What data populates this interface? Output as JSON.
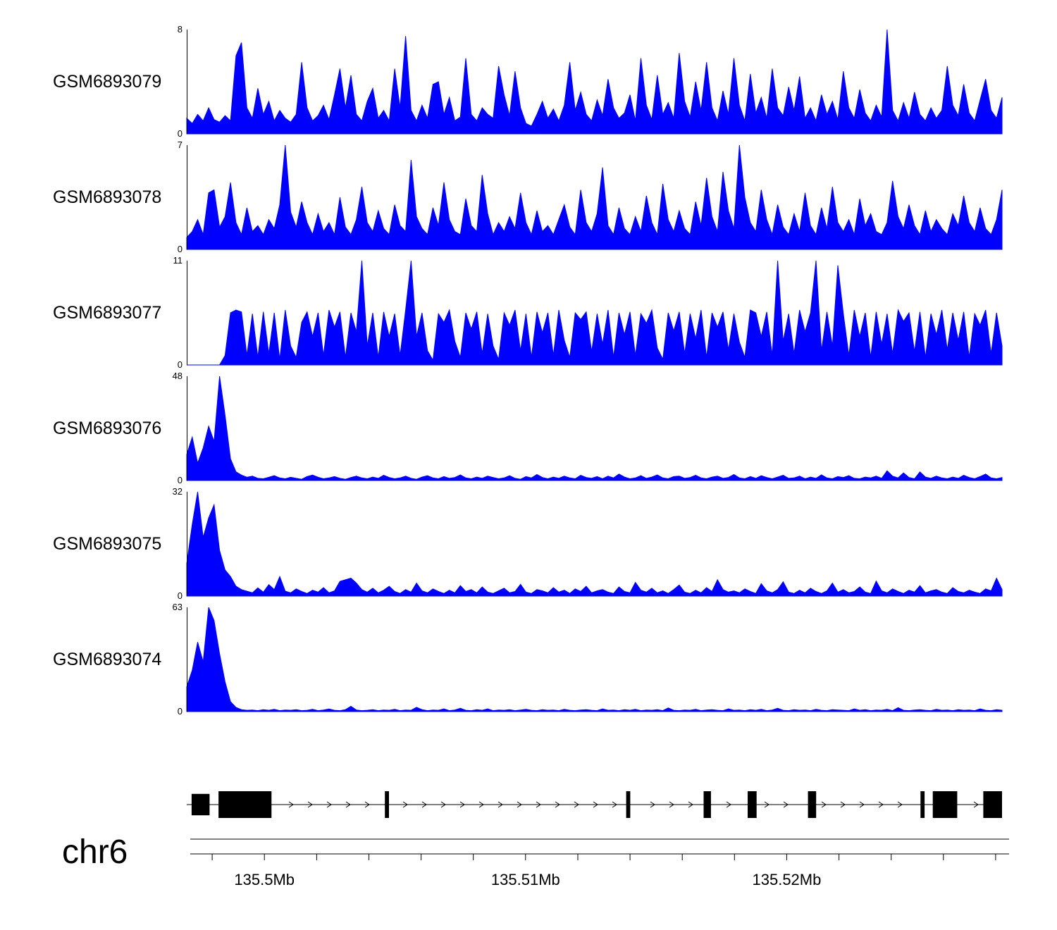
{
  "chart_data": {
    "type": "area",
    "title": "",
    "color": "#0000ff",
    "region": {
      "chrom": "chr6",
      "start_mb": 135.49716,
      "end_mb": 135.52838
    },
    "tracks": [
      {
        "label": "GSM6893079",
        "ymin": 0,
        "ymax": 8,
        "values": [
          1.2,
          0.8,
          1.5,
          1.0,
          2.0,
          1.1,
          0.9,
          1.4,
          1.0,
          6.0,
          7.0,
          2.0,
          1.2,
          3.5,
          1.5,
          2.5,
          1.0,
          1.8,
          1.2,
          0.9,
          1.5,
          5.5,
          2.0,
          1.0,
          1.4,
          2.2,
          1.1,
          3.0,
          5.0,
          2.0,
          4.5,
          1.5,
          1.0,
          2.5,
          3.5,
          1.2,
          1.8,
          1.0,
          5.0,
          2.0,
          7.5,
          1.8,
          1.0,
          2.2,
          1.2,
          3.8,
          4.0,
          1.5,
          2.8,
          1.0,
          1.3,
          5.8,
          1.5,
          1.0,
          2.0,
          1.5,
          1.2,
          5.2,
          3.0,
          1.4,
          4.8,
          2.0,
          0.8,
          0.6,
          1.5,
          2.5,
          1.2,
          1.9,
          1.0,
          2.2,
          5.5,
          1.8,
          3.2,
          1.5,
          1.0,
          2.6,
          1.4,
          4.2,
          2.0,
          1.2,
          1.6,
          3.0,
          1.0,
          5.8,
          2.2,
          1.1,
          4.5,
          1.5,
          2.4,
          1.2,
          6.2,
          2.5,
          1.3,
          4.0,
          1.8,
          5.5,
          2.0,
          1.0,
          3.3,
          1.5,
          5.8,
          2.2,
          1.0,
          4.6,
          1.6,
          2.8,
          1.2,
          5.0,
          2.0,
          1.4,
          3.6,
          1.8,
          4.4,
          1.2,
          2.0,
          1.0,
          3.0,
          1.5,
          2.5,
          1.1,
          4.8,
          2.0,
          1.2,
          3.4,
          1.6,
          1.0,
          2.2,
          1.3,
          8.0,
          1.8,
          1.0,
          2.4,
          1.2,
          3.2,
          1.5,
          1.0,
          2.0,
          1.2,
          1.8,
          5.2,
          2.2,
          1.4,
          3.8,
          1.6,
          1.0,
          2.6,
          4.2,
          1.8,
          1.2,
          2.8
        ]
      },
      {
        "label": "GSM6893078",
        "ymin": 0,
        "ymax": 7,
        "values": [
          0.8,
          1.2,
          2.0,
          1.0,
          3.8,
          4.0,
          1.5,
          2.2,
          4.5,
          1.8,
          1.0,
          2.8,
          1.2,
          1.6,
          1.0,
          2.0,
          1.4,
          3.0,
          7.0,
          2.5,
          1.5,
          3.2,
          1.8,
          1.0,
          2.4,
          1.2,
          1.8,
          1.0,
          3.5,
          1.5,
          1.0,
          2.0,
          4.2,
          1.8,
          1.2,
          2.6,
          1.4,
          1.0,
          3.0,
          1.6,
          1.2,
          6.0,
          2.2,
          1.4,
          1.0,
          2.8,
          1.6,
          4.5,
          2.0,
          1.2,
          1.0,
          3.4,
          1.6,
          1.2,
          5.0,
          2.4,
          1.0,
          1.8,
          1.2,
          2.2,
          1.4,
          3.8,
          1.8,
          1.0,
          2.6,
          1.2,
          1.6,
          1.0,
          2.0,
          3.0,
          1.5,
          1.0,
          4.0,
          1.8,
          1.2,
          2.4,
          5.5,
          1.6,
          1.0,
          2.8,
          1.4,
          1.0,
          2.2,
          1.2,
          3.6,
          1.8,
          1.0,
          4.4,
          2.0,
          1.2,
          2.6,
          1.4,
          1.0,
          3.2,
          1.6,
          4.8,
          2.2,
          1.2,
          5.2,
          2.6,
          1.4,
          7.0,
          3.5,
          1.8,
          1.2,
          4.0,
          2.0,
          1.0,
          3.0,
          1.5,
          1.0,
          2.4,
          1.2,
          3.8,
          1.6,
          1.0,
          2.8,
          1.4,
          4.2,
          1.8,
          1.2,
          2.0,
          1.0,
          3.4,
          1.6,
          2.4,
          1.2,
          1.0,
          1.8,
          4.6,
          2.2,
          1.4,
          3.0,
          1.6,
          1.0,
          2.6,
          1.2,
          2.0,
          1.4,
          1.0,
          2.4,
          1.6,
          3.6,
          1.8,
          1.2,
          2.8,
          1.4,
          1.0,
          2.0,
          4.0
        ]
      },
      {
        "label": "GSM6893077",
        "ymin": 0,
        "ymax": 11,
        "values": [
          0,
          0,
          0,
          0,
          0,
          0,
          0,
          1.0,
          5.5,
          5.8,
          5.6,
          1.0,
          5.4,
          0.8,
          5.6,
          1.2,
          5.5,
          0.6,
          5.8,
          2.0,
          0.8,
          4.5,
          5.6,
          3.0,
          5.5,
          1.0,
          5.8,
          4.0,
          5.6,
          0.8,
          5.5,
          3.5,
          11.0,
          2.0,
          5.5,
          0.8,
          5.6,
          3.0,
          5.4,
          1.0,
          5.8,
          11.0,
          3.0,
          5.5,
          1.5,
          0.5,
          5.4,
          4.5,
          5.8,
          2.5,
          0.8,
          5.5,
          3.8,
          5.6,
          1.2,
          5.4,
          2.0,
          0.6,
          5.5,
          4.2,
          5.8,
          1.5,
          5.4,
          0.8,
          5.6,
          3.4,
          5.5,
          1.0,
          5.8,
          2.6,
          0.8,
          5.5,
          4.8,
          5.6,
          1.4,
          5.4,
          2.2,
          5.8,
          0.8,
          5.5,
          3.2,
          5.6,
          1.0,
          5.4,
          4.4,
          5.8,
          1.8,
          0.6,
          5.5,
          3.6,
          5.6,
          1.2,
          5.4,
          2.8,
          5.8,
          0.8,
          5.5,
          4.0,
          5.6,
          1.6,
          5.4,
          2.4,
          0.8,
          5.8,
          5.5,
          3.0,
          5.6,
          1.0,
          11.0,
          2.5,
          5.4,
          1.2,
          5.8,
          3.5,
          5.5,
          11.0,
          1.5,
          5.6,
          2.0,
          10.5,
          5.4,
          1.0,
          5.8,
          3.0,
          5.5,
          0.8,
          5.6,
          2.2,
          5.4,
          1.2,
          5.8,
          4.6,
          5.5,
          1.4,
          5.6,
          0.8,
          5.4,
          3.2,
          5.8,
          1.6,
          5.5,
          2.6,
          5.6,
          0.8,
          5.4,
          4.2,
          5.8,
          1.2,
          5.5,
          2.0
        ]
      },
      {
        "label": "GSM6893076",
        "ymin": 0,
        "ymax": 48,
        "values": [
          12,
          20,
          8,
          15,
          25,
          18,
          48,
          30,
          10,
          4,
          2.5,
          1.5,
          2.0,
          1.0,
          0.8,
          1.5,
          2.2,
          1.2,
          0.8,
          1.5,
          1.0,
          0.6,
          1.8,
          2.5,
          1.5,
          0.8,
          1.2,
          1.8,
          1.0,
          0.6,
          1.4,
          2.0,
          1.2,
          0.8,
          1.6,
          1.0,
          2.4,
          1.4,
          0.8,
          1.2,
          2.0,
          1.0,
          0.6,
          1.6,
          2.2,
          1.2,
          0.8,
          1.8,
          1.0,
          1.4,
          2.6,
          1.2,
          0.8,
          1.6,
          1.0,
          2.0,
          1.4,
          0.8,
          1.2,
          2.2,
          1.0,
          0.6,
          1.8,
          1.2,
          2.8,
          1.4,
          0.8,
          1.6,
          1.0,
          2.0,
          1.2,
          0.8,
          2.4,
          1.4,
          1.0,
          1.8,
          0.8,
          2.0,
          1.2,
          3.0,
          1.6,
          0.8,
          1.2,
          2.2,
          1.0,
          1.6,
          2.6,
          1.2,
          0.8,
          1.8,
          2.0,
          1.0,
          1.4,
          2.4,
          1.2,
          0.8,
          1.6,
          2.0,
          1.0,
          1.4,
          2.8,
          1.2,
          0.8,
          1.8,
          1.0,
          2.2,
          1.4,
          0.8,
          1.6,
          2.4,
          1.0,
          1.2,
          2.0,
          0.8,
          1.6,
          1.0,
          2.6,
          1.2,
          0.8,
          1.8,
          1.4,
          2.2,
          1.0,
          0.8,
          1.6,
          1.2,
          2.0,
          1.0,
          4.5,
          2.0,
          1.2,
          3.5,
          1.4,
          0.8,
          4.0,
          1.6,
          1.0,
          2.0,
          1.2,
          0.8,
          1.6,
          1.0,
          2.4,
          1.4,
          0.8,
          1.8,
          3.0,
          1.2,
          0.8,
          1.4
        ]
      },
      {
        "label": "GSM6893075",
        "ymin": 0,
        "ymax": 32,
        "values": [
          10,
          22,
          32,
          18,
          24,
          28,
          14,
          8,
          6,
          3,
          2.0,
          1.5,
          1.0,
          2.5,
          1.2,
          3.5,
          2.0,
          6.0,
          1.5,
          1.0,
          2.2,
          1.4,
          0.8,
          1.8,
          1.2,
          2.6,
          1.0,
          1.6,
          4.5,
          5.0,
          5.5,
          4.0,
          2.0,
          1.2,
          2.4,
          1.0,
          1.8,
          3.0,
          1.4,
          0.8,
          2.0,
          1.2,
          4.0,
          1.6,
          1.0,
          2.2,
          1.4,
          0.8,
          1.8,
          1.0,
          3.2,
          1.4,
          2.0,
          1.0,
          2.8,
          1.2,
          0.8,
          1.6,
          2.4,
          1.0,
          1.4,
          3.6,
          1.2,
          0.8,
          2.0,
          1.6,
          1.0,
          2.6,
          1.2,
          1.8,
          0.8,
          2.2,
          1.4,
          3.0,
          1.0,
          1.6,
          2.0,
          1.2,
          0.8,
          2.8,
          1.4,
          1.0,
          4.2,
          1.8,
          1.2,
          2.4,
          1.0,
          1.6,
          0.8,
          2.0,
          3.4,
          1.2,
          0.8,
          1.8,
          1.0,
          2.6,
          1.4,
          5.0,
          2.0,
          1.2,
          1.6,
          1.0,
          2.2,
          1.4,
          0.8,
          3.8,
          1.6,
          1.0,
          2.0,
          4.4,
          1.2,
          0.8,
          1.8,
          1.0,
          2.4,
          1.4,
          0.8,
          1.6,
          4.0,
          1.2,
          2.0,
          1.0,
          1.4,
          2.8,
          1.2,
          0.8,
          4.6,
          1.6,
          1.0,
          2.2,
          1.4,
          0.8,
          1.8,
          1.2,
          3.2,
          1.0,
          1.6,
          2.0,
          1.2,
          0.8,
          2.6,
          1.4,
          1.0,
          1.8,
          1.2,
          0.8,
          2.2,
          1.6,
          5.5,
          2.0
        ]
      },
      {
        "label": "GSM6893074",
        "ymin": 0,
        "ymax": 63,
        "values": [
          15,
          25,
          42,
          30,
          63,
          55,
          35,
          18,
          6,
          2.5,
          1.2,
          0.8,
          1.0,
          0.6,
          1.2,
          0.8,
          1.4,
          0.6,
          1.0,
          0.8,
          1.2,
          0.6,
          0.8,
          1.4,
          0.6,
          1.0,
          1.6,
          0.8,
          0.6,
          1.2,
          3.2,
          1.0,
          0.6,
          0.8,
          1.2,
          0.6,
          1.0,
          0.8,
          1.4,
          0.6,
          1.0,
          0.8,
          2.6,
          1.2,
          0.6,
          1.0,
          0.8,
          1.6,
          0.6,
          1.0,
          2.0,
          0.8,
          0.6,
          1.2,
          0.8,
          1.6,
          0.6,
          1.0,
          0.8,
          1.2,
          0.6,
          1.0,
          1.4,
          0.8,
          0.6,
          1.2,
          0.8,
          1.0,
          0.6,
          1.4,
          0.8,
          0.6,
          1.0,
          1.2,
          0.8,
          0.6,
          1.6,
          0.8,
          1.0,
          0.6,
          1.2,
          0.8,
          1.4,
          0.6,
          1.0,
          0.8,
          1.2,
          0.6,
          2.2,
          0.8,
          0.6,
          1.0,
          0.8,
          1.4,
          0.6,
          1.0,
          1.2,
          0.8,
          0.6,
          1.6,
          0.8,
          1.0,
          0.6,
          1.2,
          0.8,
          1.4,
          0.6,
          1.0,
          2.0,
          0.8,
          0.6,
          1.2,
          0.8,
          1.0,
          0.6,
          1.4,
          0.8,
          0.6,
          1.2,
          1.0,
          0.8,
          0.6,
          1.6,
          0.8,
          1.2,
          0.6,
          1.0,
          0.8,
          1.4,
          0.6,
          2.4,
          0.8,
          0.6,
          1.0,
          1.2,
          0.8,
          0.6,
          1.4,
          0.8,
          1.0,
          0.6,
          1.2,
          0.8,
          1.0,
          0.6,
          1.6,
          0.8,
          0.6,
          1.2,
          0.8
        ]
      }
    ],
    "gene_model": {
      "strand": "+",
      "exons": [
        {
          "start": 0.006,
          "end": 0.028,
          "h": 0.8
        },
        {
          "start": 0.039,
          "end": 0.104,
          "h": 1
        },
        {
          "start": 0.243,
          "end": 0.248,
          "h": 1
        },
        {
          "start": 0.539,
          "end": 0.544,
          "h": 1
        },
        {
          "start": 0.634,
          "end": 0.643,
          "h": 1
        },
        {
          "start": 0.688,
          "end": 0.699,
          "h": 1
        },
        {
          "start": 0.762,
          "end": 0.772,
          "h": 1
        },
        {
          "start": 0.9,
          "end": 0.905,
          "h": 1
        },
        {
          "start": 0.915,
          "end": 0.945,
          "h": 1
        },
        {
          "start": 0.977,
          "end": 1.0,
          "h": 1
        }
      ]
    },
    "axis": {
      "major_ticks": [
        {
          "mb": 135.5,
          "label": "135.5Mb"
        },
        {
          "mb": 135.51,
          "label": "135.51Mb"
        },
        {
          "mb": 135.52,
          "label": "135.52Mb"
        }
      ],
      "minor_tick_start_mb": 135.498,
      "minor_tick_interval_mb": 0.002,
      "minor_tick_count": 16
    }
  }
}
